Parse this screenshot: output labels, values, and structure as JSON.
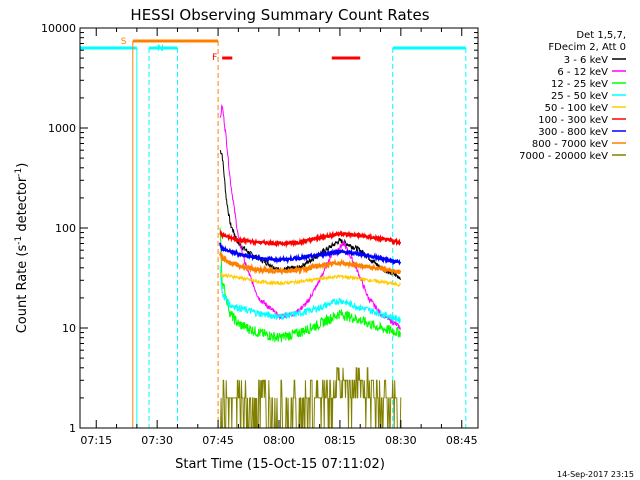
{
  "chart_data": {
    "type": "line",
    "title": "HESSI Observing Summary Count Rates",
    "xlabel": "Start Time (15-Oct-15 07:11:02)",
    "ylabel_main": "Count Rate (s",
    "ylabel_sup1": "-1",
    "ylabel_mid": " detector",
    "ylabel_sup2": "-1",
    "ylabel_end": ")",
    "y_log": true,
    "xlim": [
      "07:11",
      "08:49"
    ],
    "ylim": [
      1,
      10000
    ],
    "x_ticks": [
      "07:15",
      "07:30",
      "07:45",
      "08:00",
      "08:15",
      "08:30",
      "08:45"
    ],
    "y_ticks": [
      "1",
      "10",
      "100",
      "1000",
      "10000"
    ],
    "legend_header": [
      "Det 1,5,7,",
      "FDecim 2, Att 0"
    ],
    "legend_position": "right",
    "series": [
      {
        "name": "3 - 6 keV",
        "color": "#000000",
        "x": [
          "07:45:30",
          "07:46",
          "07:47",
          "07:48",
          "07:50",
          "07:53",
          "07:57",
          "08:00",
          "08:05",
          "08:10",
          "08:15",
          "08:20",
          "08:25",
          "08:30"
        ],
        "values": [
          600,
          550,
          200,
          110,
          70,
          55,
          45,
          38,
          40,
          55,
          75,
          60,
          40,
          32
        ]
      },
      {
        "name": "6 - 12 keV",
        "color": "#ff00ff",
        "x": [
          "07:45:30",
          "07:46",
          "07:47",
          "07:48",
          "07:50",
          "07:52",
          "07:55",
          "08:00",
          "08:04",
          "08:07",
          "08:10",
          "08:13",
          "08:16",
          "08:19",
          "08:22",
          "08:25",
          "08:30"
        ],
        "values": [
          1200,
          1700,
          800,
          300,
          80,
          40,
          20,
          13,
          14,
          18,
          30,
          55,
          70,
          40,
          20,
          14,
          10
        ]
      },
      {
        "name": "12 - 25 keV",
        "color": "#00ff00",
        "x": [
          "07:45:30",
          "07:46",
          "07:48",
          "07:50",
          "07:55",
          "08:00",
          "08:05",
          "08:10",
          "08:15",
          "08:20",
          "08:25",
          "08:30"
        ],
        "values": [
          100,
          30,
          14,
          11,
          9,
          8,
          9,
          11,
          14,
          12,
          10,
          9
        ]
      },
      {
        "name": "25 - 50 keV",
        "color": "#00ffff",
        "x": [
          "07:45:30",
          "07:46",
          "07:48",
          "07:50",
          "07:55",
          "08:00",
          "08:05",
          "08:10",
          "08:15",
          "08:20",
          "08:25",
          "08:30"
        ],
        "values": [
          40,
          22,
          17,
          16,
          14,
          13,
          14,
          16,
          19,
          16,
          14,
          12
        ]
      },
      {
        "name": "50 - 100 keV",
        "color": "#ffcc00",
        "x": [
          "07:45:30",
          "07:46",
          "07:48",
          "07:50",
          "07:55",
          "08:00",
          "08:05",
          "08:10",
          "08:15",
          "08:20",
          "08:25",
          "08:30"
        ],
        "values": [
          35,
          34,
          33,
          32,
          29,
          28,
          29,
          31,
          33,
          31,
          29,
          27
        ]
      },
      {
        "name": "100 - 300 keV",
        "color": "#ff0000",
        "x": [
          "07:45:30",
          "07:46",
          "07:48",
          "07:50",
          "07:55",
          "08:00",
          "08:05",
          "08:10",
          "08:15",
          "08:20",
          "08:25",
          "08:30"
        ],
        "values": [
          90,
          85,
          80,
          76,
          72,
          70,
          72,
          80,
          88,
          84,
          78,
          72
        ]
      },
      {
        "name": "300 - 800 keV",
        "color": "#0000ff",
        "x": [
          "07:45:30",
          "07:46",
          "07:48",
          "07:50",
          "07:55",
          "08:00",
          "08:05",
          "08:10",
          "08:15",
          "08:20",
          "08:25",
          "08:30"
        ],
        "values": [
          70,
          62,
          58,
          55,
          50,
          48,
          50,
          54,
          58,
          55,
          50,
          45
        ]
      },
      {
        "name": "800 - 7000 keV",
        "color": "#ff8000",
        "x": [
          "07:45:30",
          "07:46",
          "07:48",
          "07:50",
          "07:55",
          "08:00",
          "08:05",
          "08:10",
          "08:15",
          "08:20",
          "08:25",
          "08:30"
        ],
        "values": [
          55,
          50,
          45,
          42,
          38,
          37,
          38,
          42,
          45,
          42,
          39,
          36
        ]
      },
      {
        "name": "7000 - 20000 keV",
        "color": "#808000",
        "x": [
          "07:45:30",
          "07:50",
          "07:55",
          "08:00",
          "08:05",
          "08:10",
          "08:15",
          "08:20",
          "08:25",
          "08:30"
        ],
        "values": [
          2,
          2,
          2,
          2,
          2,
          2,
          3,
          3,
          2,
          2
        ]
      }
    ],
    "markers": [
      {
        "label": "S",
        "color": "#ff8000"
      },
      {
        "label": "N",
        "color": "#00ffff"
      },
      {
        "label": "F",
        "color": "#ff0000"
      }
    ],
    "bars": {
      "saa_color": "#ff8000",
      "night_color": "#00ffff",
      "flare_color": "#ff0000",
      "saa_time": [
        "07:24",
        "07:45"
      ],
      "night_times": [
        [
          "07:11",
          "07:25"
        ],
        [
          "07:28",
          "07:35"
        ],
        [
          "08:28",
          "08:46"
        ]
      ],
      "flare_times": [
        [
          "07:46",
          "07:48:30"
        ],
        [
          "08:13",
          "08:20"
        ]
      ]
    },
    "footer": "14-Sep-2017 23:15"
  }
}
